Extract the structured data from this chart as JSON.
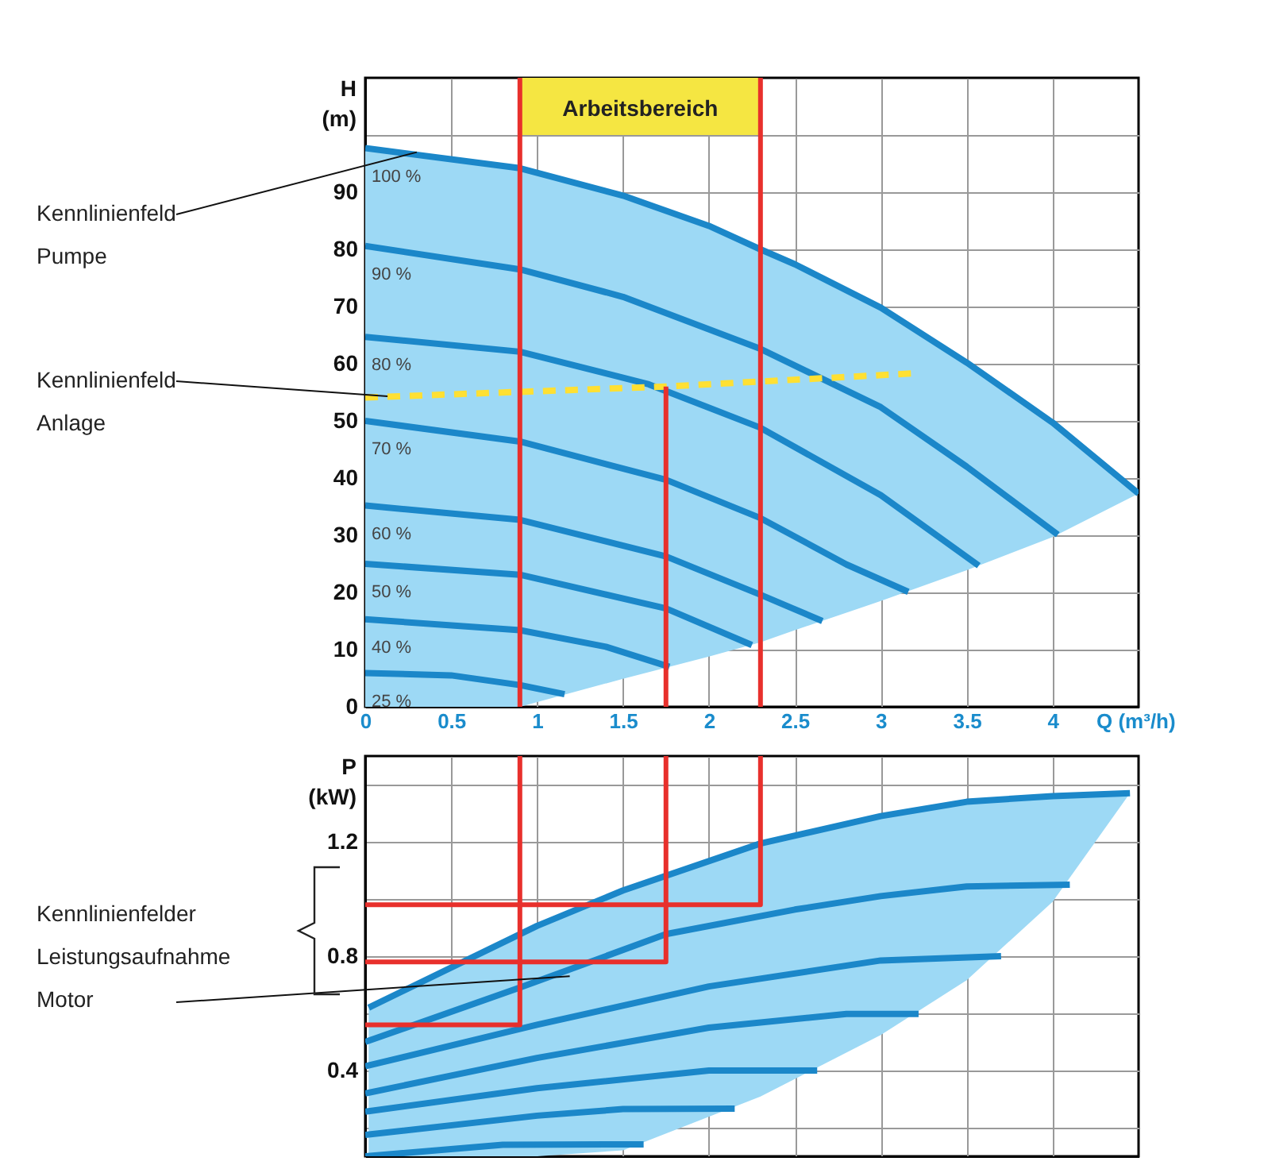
{
  "chart_data": [
    {
      "type": "line",
      "xlabel": "Q (m³/h)",
      "ylabel": "H (m)",
      "xlim": [
        0,
        4.5
      ],
      "ylim": [
        0,
        110
      ],
      "xticks": [
        0,
        0.5,
        1,
        1.5,
        2,
        2.5,
        3,
        3.5,
        4
      ],
      "yticks": [
        0,
        10,
        20,
        30,
        40,
        50,
        60,
        70,
        80,
        90,
        {
          "value": 100,
          "label": null
        }
      ],
      "grid": true,
      "bands": [
        {
          "axis": "x",
          "from": 0.9,
          "to": 2.3,
          "label": "Arbeitsbereich",
          "color": "#f5e642"
        }
      ],
      "ref_lines": [
        {
          "axis": "x",
          "value": 0.9,
          "color": "#e8302c"
        },
        {
          "axis": "x",
          "value": 2.3,
          "color": "#e8302c"
        }
      ],
      "annotations": [
        {
          "text": "Kennlinienfeld\nPumpe",
          "x": 0.3,
          "y": 97
        },
        {
          "text": "Kennlinienfeld\nAnlage",
          "x": 0.13,
          "y": 54.3
        }
      ],
      "series": [
        {
          "name": "100 %",
          "color": "#1b87c9",
          "x": [
            0,
            0.9,
            1.5,
            2,
            2.3,
            2.5,
            3,
            3.5,
            4,
            4.5
          ],
          "values": [
            97.7,
            94.2,
            89.4,
            84.1,
            80,
            77.4,
            69.8,
            60.2,
            49.7,
            37.3
          ],
          "lower": [
            0,
            0,
            4.9,
            8.8,
            11.3,
            13.4,
            18.5,
            23.9,
            29.7,
            37.3
          ],
          "upper": [
            97.7,
            94.2,
            89.4,
            84.1,
            80,
            77.4,
            69.8,
            60.2,
            49.7,
            37.3
          ]
        },
        {
          "name": "90 %",
          "color": "#1b87c9",
          "x": [
            0,
            0.9,
            1.5,
            2.3,
            3,
            3.5,
            4.03
          ],
          "values": [
            80.6,
            76.5,
            71.7,
            62.6,
            52.4,
            42,
            30.1
          ]
        },
        {
          "name": "80 %",
          "color": "#1b87c9",
          "x": [
            0,
            0.9,
            1.65,
            2.3,
            3,
            3.57
          ],
          "values": [
            64.7,
            62.1,
            56.4,
            48.8,
            37,
            24.7
          ]
        },
        {
          "name": "70 %",
          "color": "#1b87c9",
          "x": [
            0,
            0.9,
            1.75,
            2.3,
            2.8,
            3.16
          ],
          "values": [
            50,
            46.4,
            39.7,
            33,
            24.9,
            20.1
          ]
        },
        {
          "name": "60 %",
          "color": "#1b87c9",
          "x": [
            0,
            0.9,
            1.75,
            2.3,
            2.66
          ],
          "values": [
            35.2,
            32.7,
            26.3,
            19.6,
            15
          ]
        },
        {
          "name": "50 %",
          "color": "#1b87c9",
          "x": [
            0,
            0.9,
            1.75,
            2.25
          ],
          "values": [
            25,
            23.1,
            17.2,
            10.8
          ]
        },
        {
          "name": "40 %",
          "color": "#1b87c9",
          "x": [
            0,
            0.9,
            1.4,
            1.77
          ],
          "values": [
            15.3,
            13.4,
            10.5,
            7
          ]
        },
        {
          "name": "25 %",
          "color": "#1b87c9",
          "x": [
            0,
            0.5,
            0.9,
            1.16
          ],
          "values": [
            5.9,
            5.5,
            3.8,
            2.2
          ]
        },
        {
          "color": "#ffe033",
          "line_style": "dashed",
          "x": [
            0,
            1.75,
            3.18
          ],
          "values": [
            54.1,
            56,
            58.3
          ]
        },
        {
          "color": "#e8302c",
          "x": [
            1.75,
            1.75
          ],
          "values": [
            56,
            0
          ]
        }
      ]
    },
    {
      "type": "line",
      "ylabel": "P (kW)",
      "xlim": [
        0,
        4.5
      ],
      "ylim": [
        0.1,
        1.5
      ],
      "xticks": [
        0,
        0.5,
        1,
        1.5,
        2,
        2.5,
        3,
        3.5,
        4
      ],
      "yticks": [
        {
          "value": 0.2,
          "label": null
        },
        0.4,
        {
          "value": 0.6,
          "label": null
        },
        0.8,
        {
          "value": 1.0,
          "label": null
        },
        1.2,
        {
          "value": 1.4,
          "label": null
        }
      ],
      "tick_labels": "y",
      "grid": true,
      "annotations": [
        {
          "text": "Kennlinienfelder\nLeistungsaufnahme\nMotor",
          "x": 1.19,
          "y": 0.73
        }
      ],
      "series": [
        {
          "color": "#1b87c9",
          "x": [
            0.02,
            1,
            1.5,
            2.3,
            3,
            3.5,
            4,
            4.45
          ],
          "values": [
            0.62,
            0.906,
            1.03,
            1.194,
            1.29,
            1.34,
            1.36,
            1.37
          ],
          "lower": [
            0.1,
            0.1,
            0.121,
            0.309,
            0.524,
            0.716,
            0.99,
            1.37
          ],
          "upper": [
            0.62,
            0.906,
            1.03,
            1.194,
            1.29,
            1.34,
            1.36,
            1.37
          ]
        },
        {
          "color": "#1b87c9",
          "x": [
            0,
            0.9,
            1.75,
            2.5,
            3,
            3.5,
            4.1
          ],
          "values": [
            0.5,
            0.69,
            0.877,
            0.963,
            1.01,
            1.044,
            1.05
          ]
        },
        {
          "color": "#1b87c9",
          "x": [
            0,
            1,
            2,
            3,
            3.7
          ],
          "values": [
            0.415,
            0.56,
            0.694,
            0.785,
            0.8
          ]
        },
        {
          "color": "#1b87c9",
          "x": [
            0,
            1,
            2,
            2.8,
            3.22
          ],
          "values": [
            0.32,
            0.444,
            0.55,
            0.598,
            0.598
          ]
        },
        {
          "color": "#1b87c9",
          "x": [
            0,
            1,
            2,
            2.63
          ],
          "values": [
            0.256,
            0.338,
            0.4,
            0.4
          ]
        },
        {
          "color": "#1b87c9",
          "x": [
            0,
            1,
            1.5,
            2.15
          ],
          "values": [
            0.175,
            0.242,
            0.265,
            0.267
          ]
        },
        {
          "color": "#1b87c9",
          "x": [
            0,
            0.8,
            1.62
          ],
          "values": [
            0.1,
            0.14,
            0.142
          ]
        },
        {
          "color": "#e8302c",
          "x": [
            0.9,
            0.9,
            0
          ],
          "values": [
            1.5,
            0.56,
            0.56
          ]
        },
        {
          "color": "#e8302c",
          "x": [
            1.75,
            1.75,
            0
          ],
          "values": [
            1.5,
            0.78,
            0.78
          ]
        },
        {
          "color": "#e8302c",
          "x": [
            2.3,
            2.3,
            0
          ],
          "values": [
            1.5,
            0.98,
            0.98
          ]
        }
      ]
    }
  ]
}
